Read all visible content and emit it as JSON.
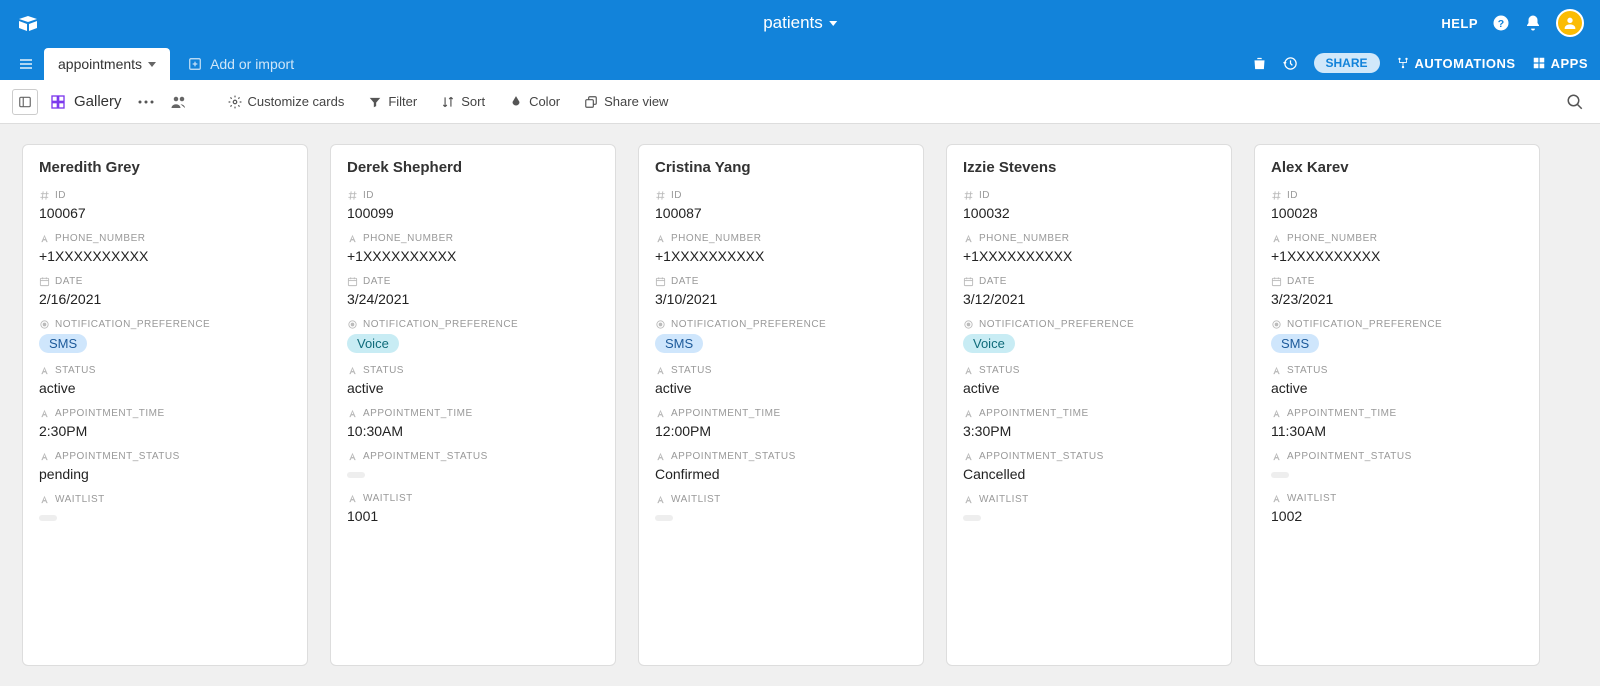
{
  "colors": {
    "brand": "#1283da",
    "background": "#f0f0f0",
    "card_bg": "#ffffff",
    "border": "#dddddd",
    "label": "#999999",
    "text": "#333333",
    "tag_sms_bg": "#cfe6fc",
    "tag_voice_bg": "#c8ecf4",
    "avatar_bg": "#fbbc04"
  },
  "topbar": {
    "base_name": "patients",
    "help_label": "HELP"
  },
  "tablebar": {
    "active_table": "appointments",
    "add_or_import": "Add or import",
    "share": "SHARE",
    "automations": "AUTOMATIONS",
    "apps": "APPS"
  },
  "viewbar": {
    "view_name": "Gallery",
    "customize": "Customize cards",
    "filter": "Filter",
    "sort": "Sort",
    "color": "Color",
    "share_view": "Share view"
  },
  "field_labels": {
    "id": "ID",
    "phone_number": "PHONE_NUMBER",
    "date": "DATE",
    "notification_preference": "NOTIFICATION_PREFERENCE",
    "status": "STATUS",
    "appointment_time": "APPOINTMENT_TIME",
    "appointment_status": "APPOINTMENT_STATUS",
    "waitlist": "WAITLIST"
  },
  "cards": [
    {
      "name": "Meredith Grey",
      "id": "100067",
      "phone_number": "+1XXXXXXXXXX",
      "date": "2/16/2021",
      "notification_preference": "SMS",
      "notification_tag": "sms",
      "status": "active",
      "appointment_time": "2:30PM",
      "appointment_status": "pending",
      "waitlist": ""
    },
    {
      "name": "Derek Shepherd",
      "id": "100099",
      "phone_number": "+1XXXXXXXXXX",
      "date": "3/24/2021",
      "notification_preference": "Voice",
      "notification_tag": "voice",
      "status": "active",
      "appointment_time": "10:30AM",
      "appointment_status": "",
      "waitlist": "1001"
    },
    {
      "name": "Cristina Yang",
      "id": "100087",
      "phone_number": "+1XXXXXXXXXX",
      "date": "3/10/2021",
      "notification_preference": "SMS",
      "notification_tag": "sms",
      "status": "active",
      "appointment_time": "12:00PM",
      "appointment_status": "Confirmed",
      "waitlist": ""
    },
    {
      "name": "Izzie Stevens",
      "id": "100032",
      "phone_number": "+1XXXXXXXXXX",
      "date": "3/12/2021",
      "notification_preference": "Voice",
      "notification_tag": "voice",
      "status": "active",
      "appointment_time": "3:30PM",
      "appointment_status": "Cancelled",
      "waitlist": ""
    },
    {
      "name": "Alex Karev",
      "id": "100028",
      "phone_number": "+1XXXXXXXXXX",
      "date": "3/23/2021",
      "notification_preference": "SMS",
      "notification_tag": "sms",
      "status": "active",
      "appointment_time": "11:30AM",
      "appointment_status": "",
      "waitlist": "1002"
    }
  ]
}
